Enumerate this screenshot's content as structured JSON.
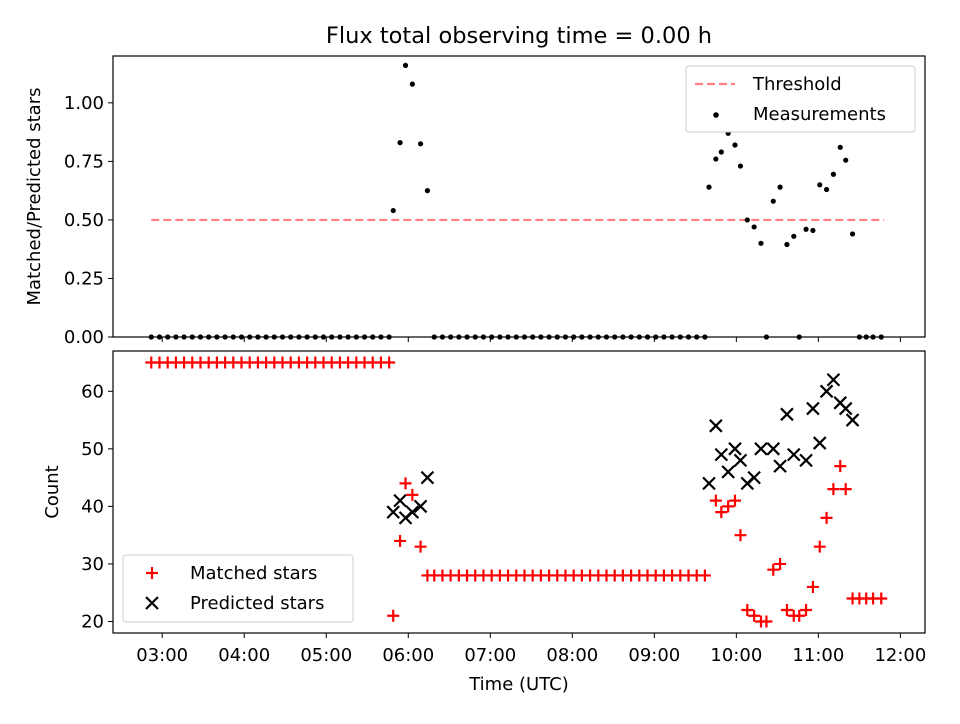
{
  "title": "Flux total observing time = 0.00 h",
  "colors": {
    "threshold": "#ff7f7f",
    "measurement": "#000000",
    "matched": "#ff0000",
    "predicted": "#000000"
  },
  "chart_data": [
    {
      "type": "scatter",
      "title": "Flux total observing time = 0.00 h",
      "ylabel": "Matched/Predicted stars",
      "xlim": [
        "02:24",
        "12:18"
      ],
      "ylim": [
        0,
        1.2
      ],
      "yticks": [
        "0.00",
        "0.25",
        "0.50",
        "0.75",
        "1.00"
      ],
      "legend": {
        "placement": "top-right",
        "entries": [
          "Threshold",
          "Measurements"
        ]
      },
      "threshold": {
        "name": "Threshold",
        "value": 0.5,
        "x_start": "02:52",
        "x_end": "11:48"
      },
      "measurements": {
        "name": "Measurements",
        "points": [
          [
            "02:52",
            0
          ],
          [
            "02:58",
            0
          ],
          [
            "03:04",
            0
          ],
          [
            "03:10",
            0
          ],
          [
            "03:16",
            0
          ],
          [
            "03:22",
            0
          ],
          [
            "03:28",
            0
          ],
          [
            "03:34",
            0
          ],
          [
            "03:40",
            0
          ],
          [
            "03:46",
            0
          ],
          [
            "03:52",
            0
          ],
          [
            "03:58",
            0
          ],
          [
            "04:04",
            0
          ],
          [
            "04:10",
            0
          ],
          [
            "04:16",
            0
          ],
          [
            "04:22",
            0
          ],
          [
            "04:28",
            0
          ],
          [
            "04:34",
            0
          ],
          [
            "04:40",
            0
          ],
          [
            "04:46",
            0
          ],
          [
            "04:52",
            0
          ],
          [
            "04:58",
            0
          ],
          [
            "05:04",
            0
          ],
          [
            "05:10",
            0
          ],
          [
            "05:16",
            0
          ],
          [
            "05:22",
            0
          ],
          [
            "05:28",
            0
          ],
          [
            "05:34",
            0
          ],
          [
            "05:40",
            0
          ],
          [
            "05:46",
            0
          ],
          [
            "05:49",
            0.54
          ],
          [
            "05:54",
            0.83
          ],
          [
            "05:58",
            1.16
          ],
          [
            "06:03",
            1.08
          ],
          [
            "06:09",
            0.825
          ],
          [
            "06:14",
            0.625
          ],
          [
            "06:19",
            0
          ],
          [
            "06:25",
            0
          ],
          [
            "06:31",
            0
          ],
          [
            "06:37",
            0
          ],
          [
            "06:43",
            0
          ],
          [
            "06:49",
            0
          ],
          [
            "06:55",
            0
          ],
          [
            "07:01",
            0
          ],
          [
            "07:07",
            0
          ],
          [
            "07:13",
            0
          ],
          [
            "07:19",
            0
          ],
          [
            "07:25",
            0
          ],
          [
            "07:31",
            0
          ],
          [
            "07:37",
            0
          ],
          [
            "07:43",
            0
          ],
          [
            "07:49",
            0
          ],
          [
            "07:55",
            0
          ],
          [
            "08:01",
            0
          ],
          [
            "08:07",
            0
          ],
          [
            "08:13",
            0
          ],
          [
            "08:19",
            0
          ],
          [
            "08:25",
            0
          ],
          [
            "08:31",
            0
          ],
          [
            "08:37",
            0
          ],
          [
            "08:43",
            0
          ],
          [
            "08:49",
            0
          ],
          [
            "08:55",
            0
          ],
          [
            "09:01",
            0
          ],
          [
            "09:07",
            0
          ],
          [
            "09:13",
            0
          ],
          [
            "09:19",
            0
          ],
          [
            "09:25",
            0
          ],
          [
            "09:31",
            0
          ],
          [
            "09:37",
            0
          ],
          [
            "09:40",
            0.64
          ],
          [
            "09:45",
            0.76
          ],
          [
            "09:49",
            0.79
          ],
          [
            "09:54",
            0.87
          ],
          [
            "09:59",
            0.82
          ],
          [
            "10:03",
            0.73
          ],
          [
            "10:08",
            0.5
          ],
          [
            "10:13",
            0.47
          ],
          [
            "10:18",
            0.4
          ],
          [
            "10:22",
            0
          ],
          [
            "10:27",
            0.58
          ],
          [
            "10:32",
            0.64
          ],
          [
            "10:37",
            0.395
          ],
          [
            "10:42",
            0.43
          ],
          [
            "10:46",
            0
          ],
          [
            "10:51",
            0.46
          ],
          [
            "10:56",
            0.455
          ],
          [
            "11:01",
            0.65
          ],
          [
            "11:06",
            0.63
          ],
          [
            "11:11",
            0.695
          ],
          [
            "11:16",
            0.81
          ],
          [
            "11:20",
            0.755
          ],
          [
            "11:25",
            0.44
          ],
          [
            "11:30",
            0
          ],
          [
            "11:35",
            0
          ],
          [
            "11:40",
            0
          ],
          [
            "11:46",
            0
          ]
        ]
      }
    },
    {
      "type": "scatter",
      "xlabel": "Time (UTC)",
      "ylabel": "Count",
      "xlim": [
        "02:24",
        "12:18"
      ],
      "ylim": [
        18,
        67
      ],
      "xticks": [
        "03:00",
        "04:00",
        "05:00",
        "06:00",
        "07:00",
        "08:00",
        "09:00",
        "10:00",
        "11:00",
        "12:00"
      ],
      "yticks": [
        "20",
        "30",
        "40",
        "50",
        "60"
      ],
      "legend": {
        "placement": "bottom-left",
        "entries": [
          "Matched stars",
          "Predicted stars"
        ]
      },
      "series": [
        {
          "name": "Matched stars",
          "marker": "+",
          "points": [
            [
              "02:52",
              65
            ],
            [
              "02:58",
              65
            ],
            [
              "03:04",
              65
            ],
            [
              "03:10",
              65
            ],
            [
              "03:16",
              65
            ],
            [
              "03:22",
              65
            ],
            [
              "03:28",
              65
            ],
            [
              "03:34",
              65
            ],
            [
              "03:40",
              65
            ],
            [
              "03:46",
              65
            ],
            [
              "03:52",
              65
            ],
            [
              "03:58",
              65
            ],
            [
              "04:04",
              65
            ],
            [
              "04:10",
              65
            ],
            [
              "04:16",
              65
            ],
            [
              "04:22",
              65
            ],
            [
              "04:28",
              65
            ],
            [
              "04:34",
              65
            ],
            [
              "04:40",
              65
            ],
            [
              "04:46",
              65
            ],
            [
              "04:52",
              65
            ],
            [
              "04:58",
              65
            ],
            [
              "05:04",
              65
            ],
            [
              "05:10",
              65
            ],
            [
              "05:16",
              65
            ],
            [
              "05:22",
              65
            ],
            [
              "05:28",
              65
            ],
            [
              "05:34",
              65
            ],
            [
              "05:40",
              65
            ],
            [
              "05:46",
              65
            ],
            [
              "05:49",
              21
            ],
            [
              "05:54",
              34
            ],
            [
              "05:58",
              44
            ],
            [
              "06:03",
              42
            ],
            [
              "06:09",
              33
            ],
            [
              "06:14",
              28
            ],
            [
              "06:19",
              28
            ],
            [
              "06:25",
              28
            ],
            [
              "06:31",
              28
            ],
            [
              "06:37",
              28
            ],
            [
              "06:43",
              28
            ],
            [
              "06:49",
              28
            ],
            [
              "06:55",
              28
            ],
            [
              "07:01",
              28
            ],
            [
              "07:07",
              28
            ],
            [
              "07:13",
              28
            ],
            [
              "07:19",
              28
            ],
            [
              "07:25",
              28
            ],
            [
              "07:31",
              28
            ],
            [
              "07:37",
              28
            ],
            [
              "07:43",
              28
            ],
            [
              "07:49",
              28
            ],
            [
              "07:55",
              28
            ],
            [
              "08:01",
              28
            ],
            [
              "08:07",
              28
            ],
            [
              "08:13",
              28
            ],
            [
              "08:19",
              28
            ],
            [
              "08:25",
              28
            ],
            [
              "08:31",
              28
            ],
            [
              "08:37",
              28
            ],
            [
              "08:43",
              28
            ],
            [
              "08:49",
              28
            ],
            [
              "08:55",
              28
            ],
            [
              "09:01",
              28
            ],
            [
              "09:07",
              28
            ],
            [
              "09:13",
              28
            ],
            [
              "09:19",
              28
            ],
            [
              "09:25",
              28
            ],
            [
              "09:31",
              28
            ],
            [
              "09:37",
              28
            ],
            [
              "09:45",
              41
            ],
            [
              "09:49",
              39
            ],
            [
              "09:54",
              40
            ],
            [
              "09:59",
              41
            ],
            [
              "10:03",
              35
            ],
            [
              "10:08",
              22
            ],
            [
              "10:13",
              21
            ],
            [
              "10:18",
              20
            ],
            [
              "10:22",
              20
            ],
            [
              "10:27",
              29
            ],
            [
              "10:32",
              30
            ],
            [
              "10:37",
              22
            ],
            [
              "10:42",
              21
            ],
            [
              "10:46",
              21
            ],
            [
              "10:51",
              22
            ],
            [
              "10:56",
              26
            ],
            [
              "11:01",
              33
            ],
            [
              "11:06",
              38
            ],
            [
              "11:11",
              43
            ],
            [
              "11:16",
              47
            ],
            [
              "11:20",
              43
            ],
            [
              "11:25",
              24
            ],
            [
              "11:30",
              24
            ],
            [
              "11:35",
              24
            ],
            [
              "11:40",
              24
            ],
            [
              "11:46",
              24
            ]
          ]
        },
        {
          "name": "Predicted stars",
          "marker": "x",
          "points": [
            [
              "05:49",
              39
            ],
            [
              "05:54",
              41
            ],
            [
              "05:58",
              38
            ],
            [
              "06:03",
              39
            ],
            [
              "06:09",
              40
            ],
            [
              "06:14",
              45
            ],
            [
              "09:40",
              44
            ],
            [
              "09:45",
              54
            ],
            [
              "09:49",
              49
            ],
            [
              "09:54",
              46
            ],
            [
              "09:59",
              50
            ],
            [
              "10:03",
              48
            ],
            [
              "10:08",
              44
            ],
            [
              "10:13",
              45
            ],
            [
              "10:18",
              50
            ],
            [
              "10:27",
              50
            ],
            [
              "10:32",
              47
            ],
            [
              "10:37",
              56
            ],
            [
              "10:42",
              49
            ],
            [
              "10:51",
              48
            ],
            [
              "10:56",
              57
            ],
            [
              "11:01",
              51
            ],
            [
              "11:06",
              60
            ],
            [
              "11:11",
              62
            ],
            [
              "11:16",
              58
            ],
            [
              "11:20",
              57
            ],
            [
              "11:25",
              55
            ]
          ]
        }
      ]
    }
  ]
}
